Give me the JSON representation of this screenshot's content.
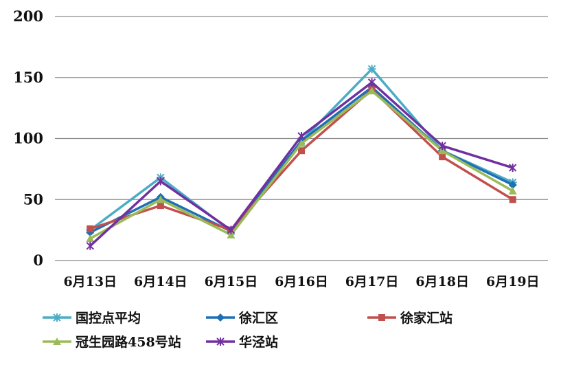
{
  "chart_data": {
    "type": "line",
    "categories": [
      "6月13日",
      "6月14日",
      "6月15日",
      "6月16日",
      "6月17日",
      "6月18日",
      "6月19日"
    ],
    "ylim": [
      0,
      200
    ],
    "yticks": [
      0,
      50,
      100,
      150,
      200
    ],
    "grid": true,
    "legend_position": "bottom",
    "series": [
      {
        "name": "国控点平均",
        "color": "#4BACC6",
        "marker": "star",
        "values": [
          25,
          68,
          24,
          98,
          157,
          90,
          64
        ]
      },
      {
        "name": "徐汇区",
        "color": "#1F6FB5",
        "marker": "diamond",
        "values": [
          23,
          52,
          24,
          98,
          142,
          90,
          62
        ]
      },
      {
        "name": "徐家汇站",
        "color": "#C0504D",
        "marker": "square",
        "values": [
          26,
          45,
          25,
          90,
          140,
          85,
          50
        ]
      },
      {
        "name": "冠生园路458号站",
        "color": "#9BBB59",
        "marker": "triangle",
        "values": [
          18,
          50,
          21,
          96,
          139,
          90,
          57
        ]
      },
      {
        "name": "华泾站",
        "color": "#7030A0",
        "marker": "xstar",
        "values": [
          12,
          65,
          25,
          102,
          146,
          94,
          76
        ]
      }
    ]
  }
}
